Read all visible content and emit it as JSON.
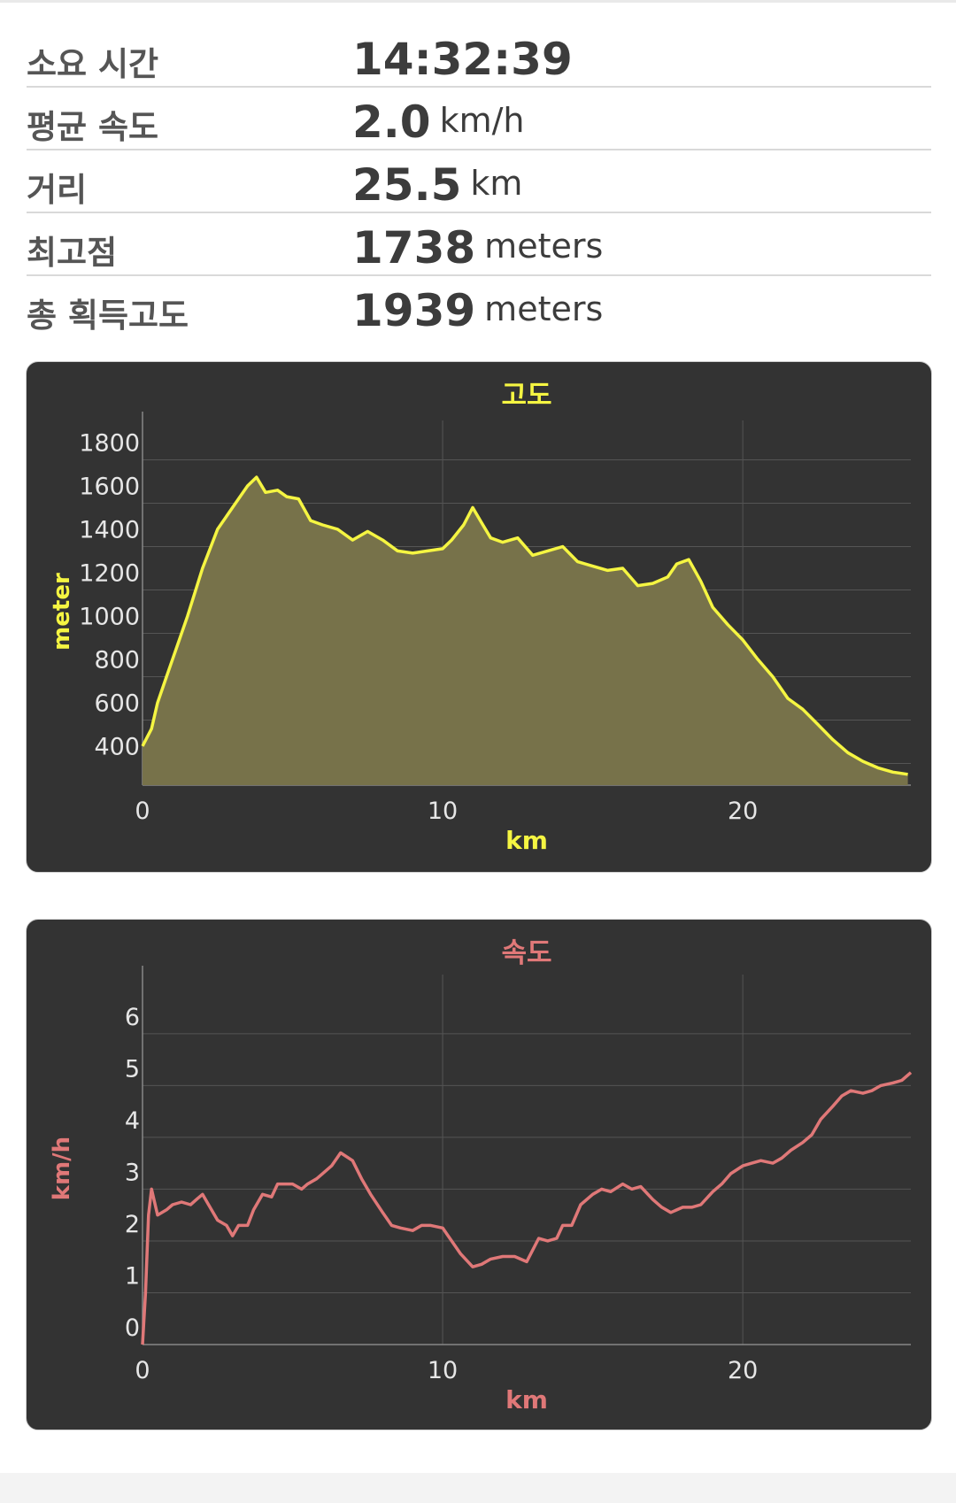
{
  "stats": [
    {
      "label": "소요 시간",
      "value": "14:32:39",
      "unit": ""
    },
    {
      "label": "평균 속도",
      "value": "2.0",
      "unit": "km/h"
    },
    {
      "label": "거리",
      "value": "25.5",
      "unit": "km"
    },
    {
      "label": "최고점",
      "value": "1738",
      "unit": "meters"
    },
    {
      "label": "총 획득고도",
      "value": "1939",
      "unit": "meters"
    }
  ],
  "colors": {
    "panel_bg": "#333333",
    "altitude": "#f5f542",
    "altitude_fill": "#77724a",
    "speed": "#e07878",
    "grid": "#555555",
    "tick_text": "#e6e6e6"
  },
  "chart_data": [
    {
      "type": "area",
      "title": "고도",
      "xlabel": "km",
      "ylabel": "meter",
      "xlim": [
        0,
        25.6
      ],
      "ylim": [
        300,
        1900
      ],
      "xticks": [
        0,
        10,
        20
      ],
      "yticks": [
        400,
        600,
        800,
        1000,
        1200,
        1400,
        1600,
        1800
      ],
      "grid": true,
      "series": [
        {
          "x": [
            0,
            0.3,
            0.5,
            0.8,
            1.0,
            1.5,
            2.0,
            2.5,
            3.0,
            3.5,
            3.8,
            4.1,
            4.5,
            4.8,
            5.2,
            5.6,
            6.0,
            6.5,
            7.0,
            7.5,
            8.0,
            8.5,
            9.0,
            9.5,
            10.0,
            10.3,
            10.7,
            11.0,
            11.3,
            11.6,
            12.0,
            12.5,
            13.0,
            13.5,
            14.0,
            14.5,
            15.0,
            15.5,
            16.0,
            16.5,
            17.0,
            17.5,
            17.8,
            18.2,
            18.6,
            19.0,
            19.5,
            20.0,
            20.5,
            21.0,
            21.5,
            22.0,
            22.5,
            23.0,
            23.5,
            24.0,
            24.5,
            25.0,
            25.5
          ],
          "y": [
            480,
            560,
            680,
            800,
            880,
            1080,
            1300,
            1480,
            1580,
            1680,
            1720,
            1650,
            1660,
            1630,
            1620,
            1520,
            1500,
            1480,
            1430,
            1470,
            1430,
            1380,
            1370,
            1380,
            1390,
            1430,
            1500,
            1580,
            1510,
            1440,
            1420,
            1440,
            1360,
            1380,
            1400,
            1330,
            1310,
            1290,
            1300,
            1220,
            1230,
            1260,
            1320,
            1340,
            1240,
            1120,
            1040,
            970,
            880,
            800,
            700,
            650,
            580,
            510,
            450,
            410,
            380,
            360,
            350
          ]
        }
      ]
    },
    {
      "type": "line",
      "title": "속도",
      "xlabel": "km",
      "ylabel": "km/h",
      "xlim": [
        0,
        25.6
      ],
      "ylim": [
        0,
        6.8
      ],
      "xticks": [
        0,
        10,
        20
      ],
      "yticks": [
        0,
        1,
        2,
        3,
        4,
        5,
        6
      ],
      "grid": true,
      "series": [
        {
          "x": [
            0,
            0.1,
            0.2,
            0.3,
            0.5,
            0.8,
            1.0,
            1.3,
            1.6,
            1.8,
            2.0,
            2.2,
            2.5,
            2.8,
            3.0,
            3.2,
            3.5,
            3.7,
            4.0,
            4.3,
            4.5,
            4.8,
            5.0,
            5.3,
            5.5,
            5.8,
            6.0,
            6.3,
            6.6,
            7.0,
            7.3,
            7.6,
            8.0,
            8.3,
            8.6,
            9.0,
            9.3,
            9.6,
            10.0,
            10.3,
            10.6,
            11.0,
            11.3,
            11.6,
            12.0,
            12.4,
            12.8,
            13.2,
            13.5,
            13.8,
            14.0,
            14.3,
            14.6,
            15.0,
            15.3,
            15.6,
            16.0,
            16.3,
            16.6,
            17.0,
            17.3,
            17.6,
            18.0,
            18.3,
            18.6,
            19.0,
            19.3,
            19.6,
            20.0,
            20.3,
            20.6,
            21.0,
            21.3,
            21.6,
            22.0,
            22.3,
            22.6,
            23.0,
            23.3,
            23.6,
            24.0,
            24.3,
            24.6,
            25.0,
            25.3,
            25.6
          ],
          "y": [
            0,
            1.0,
            2.5,
            3.0,
            2.5,
            2.6,
            2.7,
            2.75,
            2.7,
            2.8,
            2.9,
            2.7,
            2.4,
            2.3,
            2.1,
            2.3,
            2.3,
            2.6,
            2.9,
            2.85,
            3.1,
            3.1,
            3.1,
            3.0,
            3.1,
            3.2,
            3.3,
            3.45,
            3.7,
            3.55,
            3.2,
            2.9,
            2.55,
            2.3,
            2.25,
            2.2,
            2.3,
            2.3,
            2.25,
            2.0,
            1.75,
            1.5,
            1.55,
            1.65,
            1.7,
            1.7,
            1.6,
            2.05,
            2.0,
            2.05,
            2.3,
            2.3,
            2.7,
            2.9,
            3.0,
            2.95,
            3.1,
            3.0,
            3.05,
            2.8,
            2.65,
            2.55,
            2.65,
            2.65,
            2.7,
            2.95,
            3.1,
            3.3,
            3.45,
            3.5,
            3.55,
            3.5,
            3.6,
            3.75,
            3.9,
            4.05,
            4.35,
            4.6,
            4.8,
            4.9,
            4.85,
            4.9,
            5.0,
            5.05,
            5.1,
            5.25
          ]
        }
      ]
    }
  ]
}
